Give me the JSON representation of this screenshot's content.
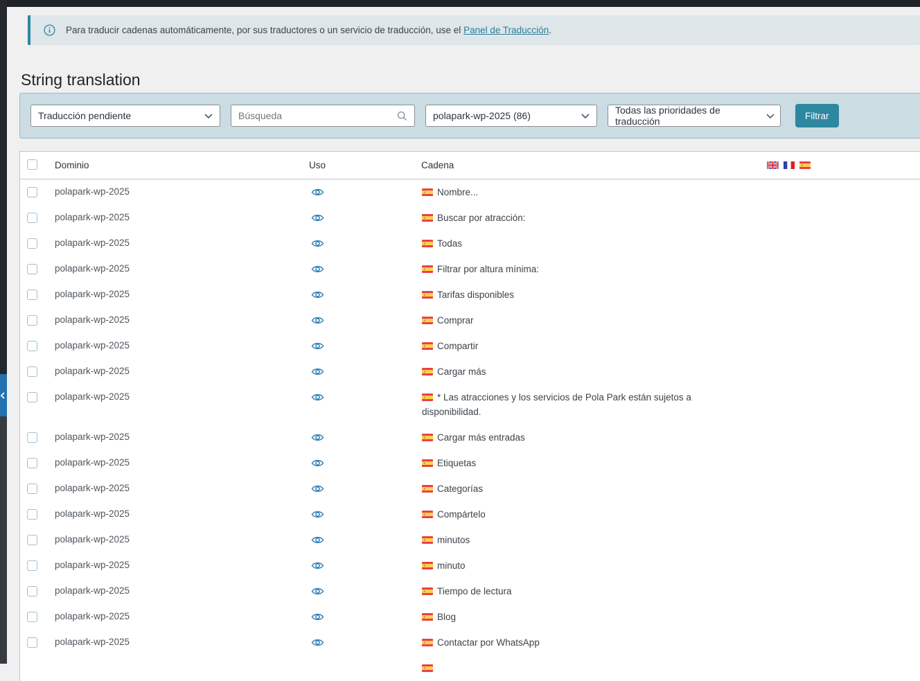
{
  "notice": {
    "text": "Para traducir cadenas automáticamente, por sus traductores o un servicio de traducción, use el ",
    "link_text": "Panel de Traducción",
    "suffix": "."
  },
  "page_title": "String translation",
  "filters": {
    "status_value": "Traducción pendiente",
    "search_placeholder": "Búsqueda",
    "domain_value": "polapark-wp-2025 (86)",
    "priority_value": "Todas las prioridades de traducción",
    "filter_button_label": "Filtrar"
  },
  "table": {
    "columns": {
      "domain": "Dominio",
      "usage": "Uso",
      "string": "Cadena"
    },
    "header_languages": [
      "united-kingdom",
      "france",
      "spain"
    ],
    "rows": [
      {
        "domain": "polapark-wp-2025",
        "string": "Nombre..."
      },
      {
        "domain": "polapark-wp-2025",
        "string": "Buscar por atracción:"
      },
      {
        "domain": "polapark-wp-2025",
        "string": "Todas"
      },
      {
        "domain": "polapark-wp-2025",
        "string": "Filtrar por altura mínima:"
      },
      {
        "domain": "polapark-wp-2025",
        "string": "Tarifas disponibles"
      },
      {
        "domain": "polapark-wp-2025",
        "string": "Comprar"
      },
      {
        "domain": "polapark-wp-2025",
        "string": "Compartir"
      },
      {
        "domain": "polapark-wp-2025",
        "string": "Cargar más"
      },
      {
        "domain": "polapark-wp-2025",
        "string": "* Las atracciones y los servicios de Pola Park están sujetos a disponibilidad."
      },
      {
        "domain": "polapark-wp-2025",
        "string": "Cargar más entradas"
      },
      {
        "domain": "polapark-wp-2025",
        "string": "Etiquetas"
      },
      {
        "domain": "polapark-wp-2025",
        "string": "Categorías"
      },
      {
        "domain": "polapark-wp-2025",
        "string": "Compártelo"
      },
      {
        "domain": "polapark-wp-2025",
        "string": "minutos"
      },
      {
        "domain": "polapark-wp-2025",
        "string": "minuto"
      },
      {
        "domain": "polapark-wp-2025",
        "string": "Tiempo de lectura"
      },
      {
        "domain": "polapark-wp-2025",
        "string": "Blog"
      },
      {
        "domain": "polapark-wp-2025",
        "string": "Contactar por WhatsApp"
      },
      {
        "domain": "polapark-wp-2025",
        "string": "",
        "partial": true
      }
    ]
  },
  "colors": {
    "accent_teal": "#2e87a1",
    "link_teal": "#2c7d99",
    "eye_blue": "#2e7fb5",
    "notice_bg": "#dee6ea",
    "filter_bg": "#cbdce3",
    "chrome_dark": "#23282d",
    "collapse_blue": "#2271b1"
  }
}
